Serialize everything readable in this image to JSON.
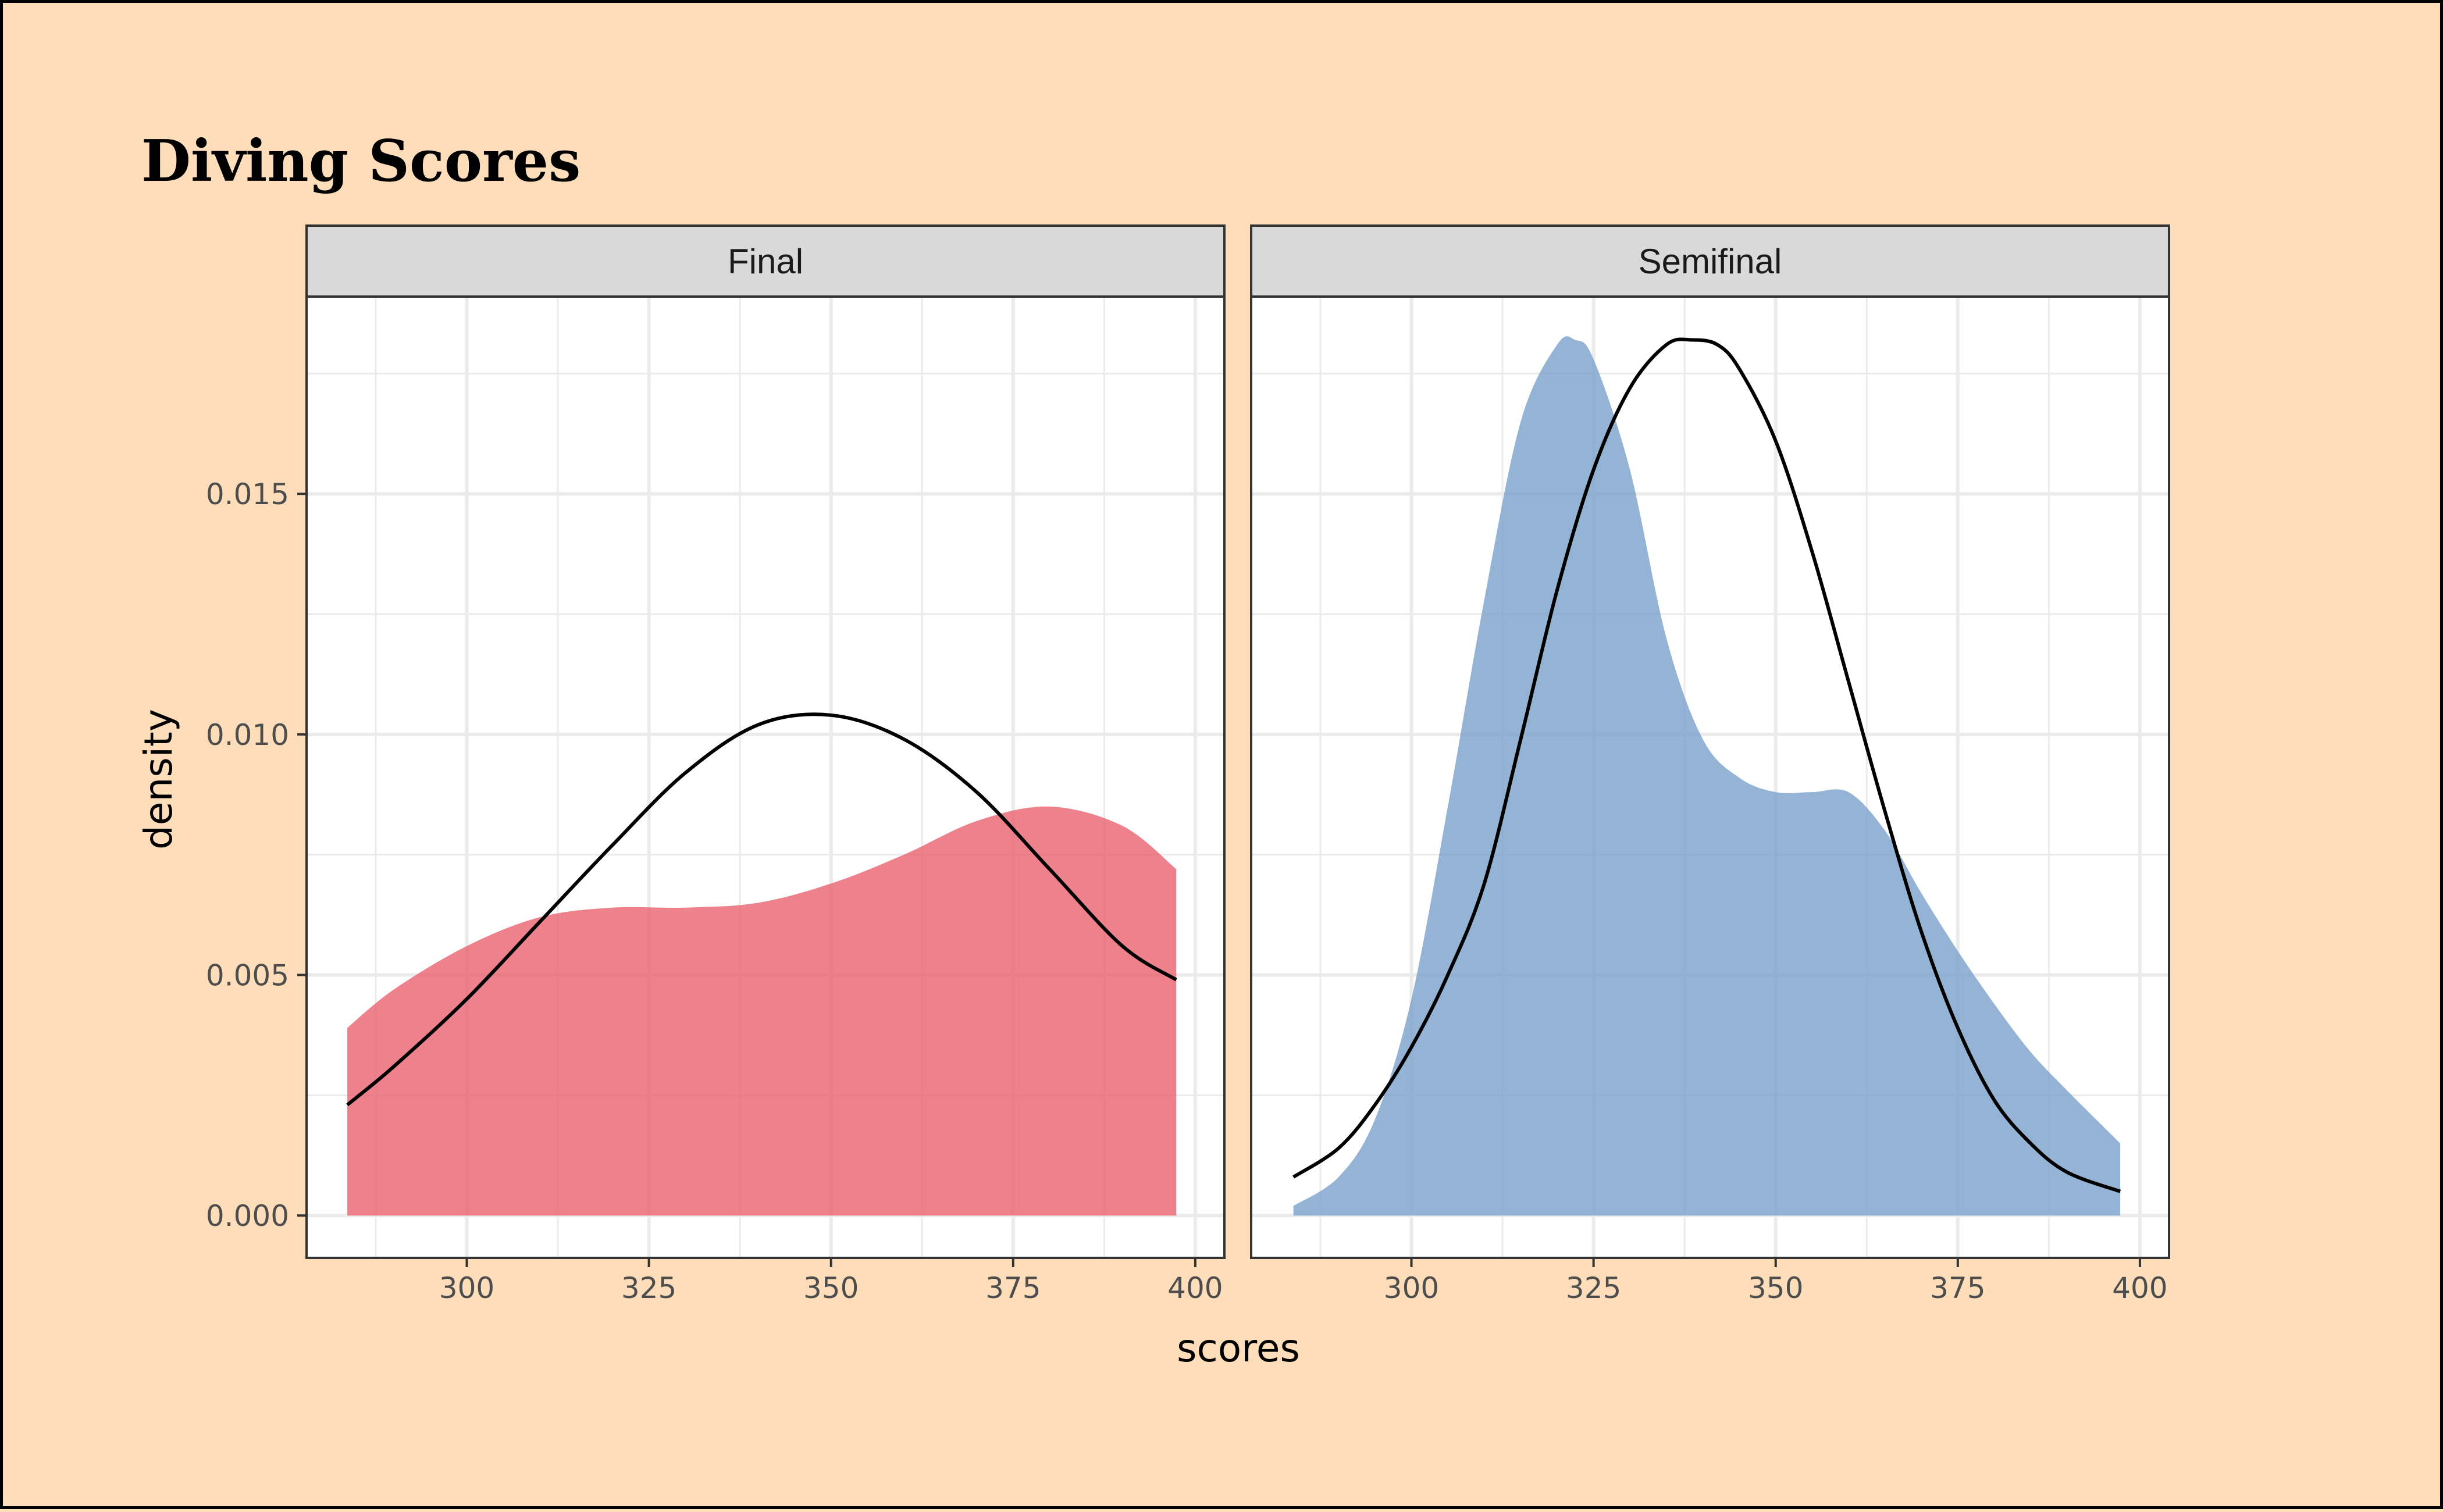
{
  "chart_data": {
    "type": "area",
    "title": "Diving Scores",
    "xlabel": "scores",
    "ylabel": "density",
    "xlim": [
      278,
      404
    ],
    "ylim": [
      -0.00088,
      0.0191
    ],
    "x_ticks": [
      300,
      325,
      350,
      375,
      400
    ],
    "x_tick_labels": [
      "300",
      "325",
      "350",
      "375",
      "400"
    ],
    "y_ticks": [
      0,
      0.005,
      0.01,
      0.015
    ],
    "y_tick_labels": [
      "0.000",
      "0.005",
      "0.010",
      "0.015"
    ],
    "grid": true,
    "legend": "none",
    "colors": {
      "background": "#FEDEBA",
      "panel": "#FFFFFF",
      "grid": "#EBEBEB",
      "strip": "#D9D9D9",
      "final_fill": "#E8616F",
      "semifinal_fill": "#7AA0CB",
      "normal_curve": "#000000"
    },
    "panels": [
      {
        "strip_label": "Final",
        "density": {
          "x": [
            283.6,
            290,
            300,
            310,
            320,
            330,
            340,
            350,
            360,
            370,
            380,
            390,
            397.4
          ],
          "y": [
            0.0039,
            0.0047,
            0.0056,
            0.0062,
            0.0064,
            0.0064,
            0.0065,
            0.0069,
            0.0075,
            0.0082,
            0.0085,
            0.0081,
            0.0072
          ]
        },
        "normal_curve": {
          "x": [
            283.6,
            290,
            300,
            310,
            320,
            330,
            340,
            350,
            360,
            370,
            380,
            390,
            397.4
          ],
          "y": [
            0.0023,
            0.0031,
            0.0045,
            0.0061,
            0.0077,
            0.0092,
            0.0102,
            0.0104,
            0.0099,
            0.0088,
            0.0072,
            0.0056,
            0.0049
          ]
        }
      },
      {
        "strip_label": "Semifinal",
        "density": {
          "x": [
            283.8,
            290,
            295,
            300,
            305,
            310,
            315,
            320,
            322.5,
            325,
            330,
            335,
            340,
            345,
            350,
            355,
            360,
            365,
            370,
            375,
            380,
            385,
            390,
            397.3
          ],
          "y": [
            0.0002,
            0.0008,
            0.002,
            0.0045,
            0.0085,
            0.0128,
            0.0165,
            0.0181,
            0.0182,
            0.0178,
            0.0155,
            0.012,
            0.0099,
            0.0091,
            0.0088,
            0.0088,
            0.0088,
            0.008,
            0.0067,
            0.0055,
            0.0044,
            0.0034,
            0.0026,
            0.0015
          ]
        },
        "normal_curve": {
          "x": [
            283.8,
            290,
            295,
            300,
            305,
            310,
            315,
            320,
            325,
            330,
            335,
            338.5,
            342,
            345,
            350,
            355,
            360,
            365,
            370,
            375,
            380,
            385,
            390,
            397.3
          ],
          "y": [
            0.0008,
            0.0014,
            0.0023,
            0.0035,
            0.005,
            0.0069,
            0.0099,
            0.013,
            0.0155,
            0.0172,
            0.0181,
            0.0182,
            0.0181,
            0.0176,
            0.0161,
            0.0138,
            0.0111,
            0.0084,
            0.0059,
            0.0039,
            0.0024,
            0.0015,
            0.0009,
            0.0005
          ]
        }
      }
    ]
  }
}
